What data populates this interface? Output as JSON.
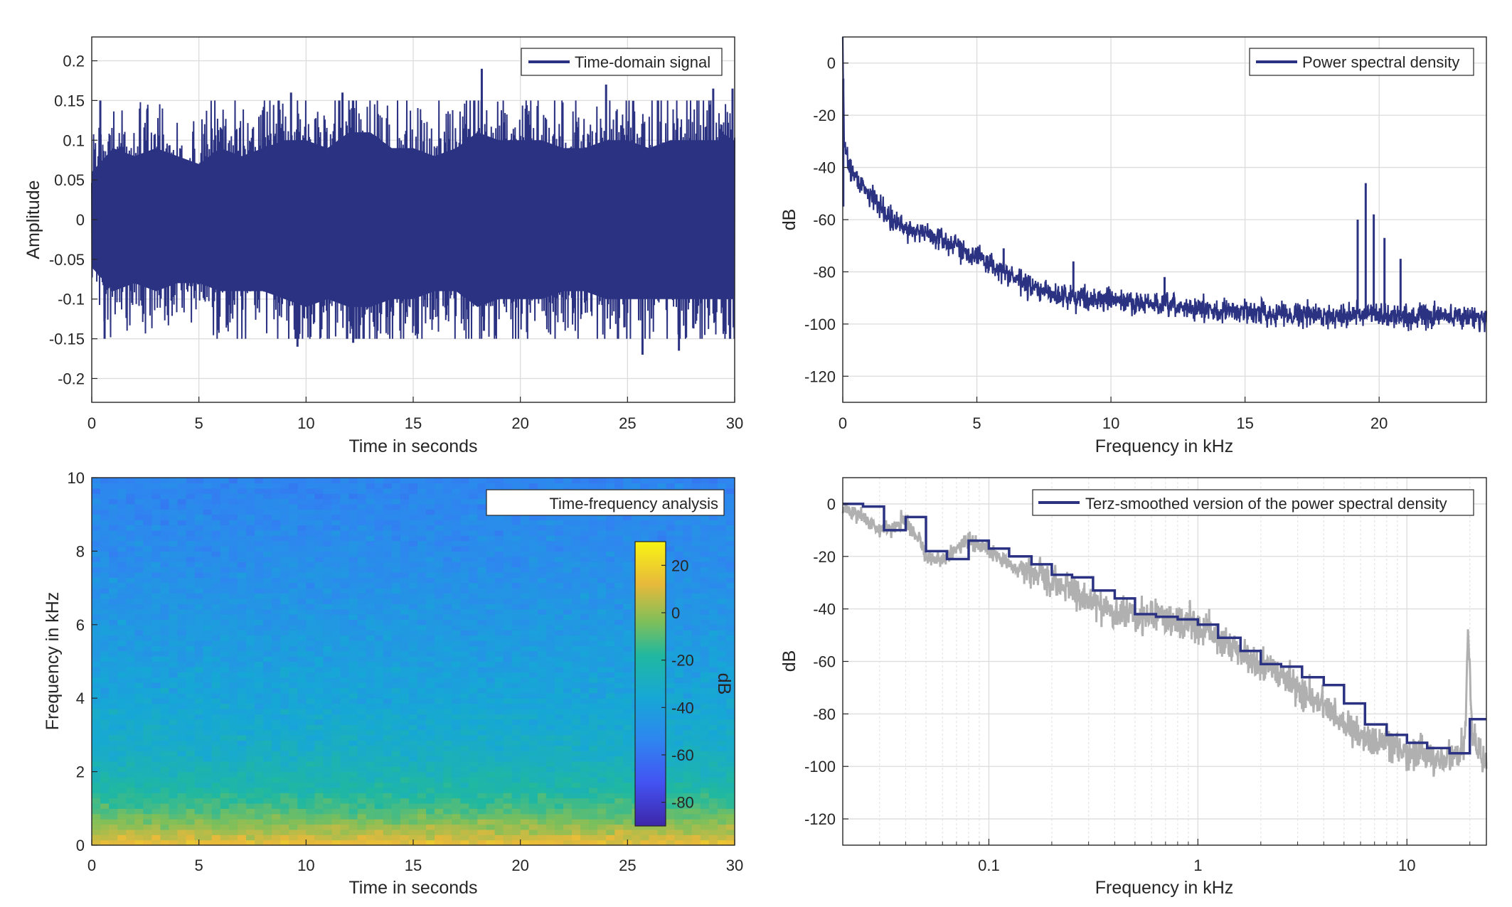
{
  "colors": {
    "signal": "#2b3282",
    "raw_psd": "#b0b0b0",
    "grid": "#dcdcdc",
    "axis": "#262626"
  },
  "chart_data": [
    {
      "type": "line",
      "legend": "Time-domain signal",
      "legend_position": "top-right",
      "xlabel": "Time in seconds",
      "ylabel": "Amplitude",
      "xlim": [
        0,
        30
      ],
      "ylim": [
        -0.23,
        0.23
      ],
      "xticks": [
        0,
        5,
        10,
        15,
        20,
        25,
        30
      ],
      "xtick_labels": [
        "0",
        "5",
        "10",
        "15",
        "20",
        "25",
        "30"
      ],
      "yticks": [
        -0.2,
        -0.15,
        -0.1,
        -0.05,
        0,
        0.05,
        0.1,
        0.15,
        0.2
      ],
      "ytick_labels": [
        "-0.2",
        "-0.15",
        "-0.1",
        "-0.05",
        "0",
        "0.05",
        "0.1",
        "0.15",
        "0.2"
      ],
      "grid": true,
      "envelope": {
        "t": [
          0,
          1,
          2,
          3,
          4,
          5,
          6,
          7,
          8,
          9,
          10,
          11,
          12,
          13,
          14,
          15,
          16,
          17,
          18,
          19,
          20,
          21,
          22,
          23,
          24,
          25,
          26,
          27,
          28,
          29,
          30
        ],
        "upper": [
          0.06,
          0.09,
          0.08,
          0.09,
          0.08,
          0.07,
          0.09,
          0.08,
          0.09,
          0.1,
          0.1,
          0.09,
          0.11,
          0.11,
          0.09,
          0.09,
          0.08,
          0.09,
          0.11,
          0.1,
          0.1,
          0.1,
          0.09,
          0.09,
          0.1,
          0.1,
          0.09,
          0.1,
          0.1,
          0.1,
          0.1
        ],
        "lower": [
          -0.06,
          -0.09,
          -0.08,
          -0.09,
          -0.08,
          -0.08,
          -0.09,
          -0.09,
          -0.09,
          -0.1,
          -0.11,
          -0.1,
          -0.11,
          -0.11,
          -0.1,
          -0.1,
          -0.09,
          -0.09,
          -0.11,
          -0.1,
          -0.1,
          -0.1,
          -0.09,
          -0.09,
          -0.1,
          -0.1,
          -0.1,
          -0.1,
          -0.1,
          -0.1,
          -0.1
        ]
      },
      "peaks": [
        {
          "t": 0.4,
          "v": 0.15
        },
        {
          "t": 0.6,
          "v": -0.15
        },
        {
          "t": 2.6,
          "v": 0.14
        },
        {
          "t": 9.3,
          "v": 0.16
        },
        {
          "t": 9.6,
          "v": -0.16
        },
        {
          "t": 11.7,
          "v": 0.16
        },
        {
          "t": 12.2,
          "v": -0.155
        },
        {
          "t": 18.2,
          "v": 0.19
        },
        {
          "t": 18.3,
          "v": -0.14
        },
        {
          "t": 24.0,
          "v": 0.17
        },
        {
          "t": 25.7,
          "v": -0.17
        },
        {
          "t": 27.4,
          "v": -0.165
        },
        {
          "t": 29.0,
          "v": 0.165
        },
        {
          "t": 29.9,
          "v": 0.165
        }
      ]
    },
    {
      "type": "line",
      "legend": "Power spectral density",
      "legend_position": "top-right",
      "xlabel": "Frequency in kHz",
      "ylabel": "dB",
      "xlim": [
        0,
        24
      ],
      "ylim": [
        -130,
        10
      ],
      "xticks": [
        0,
        5,
        10,
        15,
        20
      ],
      "xtick_labels": [
        "0",
        "5",
        "10",
        "15",
        "20"
      ],
      "yticks": [
        -120,
        -100,
        -80,
        -60,
        -40,
        -20,
        0
      ],
      "ytick_labels": [
        "-120",
        "-100",
        "-80",
        "-60",
        "-40",
        "-20",
        "0"
      ],
      "grid": true,
      "x": [
        0,
        0.05,
        0.2,
        0.5,
        1,
        1.5,
        2,
        3,
        4,
        5,
        6,
        7,
        8,
        9,
        10,
        11,
        12,
        13,
        14,
        15,
        16,
        17,
        18,
        19,
        20,
        21,
        22,
        23,
        24
      ],
      "y": [
        10,
        -30,
        -38,
        -44,
        -50,
        -56,
        -62,
        -65,
        -69,
        -74,
        -80,
        -86,
        -89,
        -90,
        -91,
        -92,
        -93,
        -94,
        -95,
        -95,
        -96,
        -96,
        -97,
        -96,
        -97,
        -97,
        -97,
        -97,
        -98
      ],
      "spikes": [
        {
          "x": 0.02,
          "y": -55
        },
        {
          "x": 6.0,
          "y": -71
        },
        {
          "x": 8.6,
          "y": -76
        },
        {
          "x": 12.0,
          "y": -82
        },
        {
          "x": 19.2,
          "y": -60
        },
        {
          "x": 19.5,
          "y": -46
        },
        {
          "x": 19.8,
          "y": -58
        },
        {
          "x": 20.2,
          "y": -67
        },
        {
          "x": 20.8,
          "y": -75
        }
      ]
    },
    {
      "type": "heatmap",
      "legend": "Time-frequency analysis",
      "legend_position": "top-right",
      "xlabel": "Time in seconds",
      "ylabel": "Frequency in kHz",
      "xlim": [
        0,
        30
      ],
      "ylim": [
        0,
        10
      ],
      "xticks": [
        0,
        5,
        10,
        15,
        20,
        25,
        30
      ],
      "xtick_labels": [
        "0",
        "5",
        "10",
        "15",
        "20",
        "25",
        "30"
      ],
      "yticks": [
        0,
        2,
        4,
        6,
        8,
        10
      ],
      "ytick_labels": [
        "0",
        "2",
        "4",
        "6",
        "8",
        "10"
      ],
      "colorbar": {
        "label": "dB",
        "range": [
          -90,
          30
        ],
        "ticks": [
          -80,
          -60,
          -40,
          -20,
          0,
          20
        ],
        "tick_labels": [
          "-80",
          "-60",
          "-40",
          "-20",
          "0",
          "20"
        ]
      },
      "freq_profile_khz": [
        0,
        0.3,
        0.8,
        1.5,
        2.5,
        4,
        6,
        8,
        10
      ],
      "freq_profile_db": [
        15,
        5,
        -8,
        -20,
        -30,
        -37,
        -44,
        -50,
        -54
      ]
    },
    {
      "type": "line",
      "legend": "Terz-smoothed version of the power spectral density",
      "legend_position": "top-right",
      "xlabel": "Frequency in kHz",
      "ylabel": "dB",
      "xscale": "log",
      "xlim": [
        0.02,
        24
      ],
      "ylim": [
        -130,
        10
      ],
      "xticks": [
        0.1,
        1,
        10
      ],
      "xtick_labels": [
        "0.1",
        "1",
        "10"
      ],
      "yticks": [
        -120,
        -100,
        -80,
        -60,
        -40,
        -20,
        0
      ],
      "ytick_labels": [
        "-120",
        "-100",
        "-80",
        "-60",
        "-40",
        "-20",
        "0"
      ],
      "grid": true,
      "series": [
        {
          "style": "raw",
          "x": [
            0.02,
            0.025,
            0.03,
            0.035,
            0.04,
            0.045,
            0.05,
            0.06,
            0.07,
            0.08,
            0.1,
            0.13,
            0.17,
            0.2,
            0.25,
            0.3,
            0.4,
            0.5,
            0.7,
            0.9,
            1.1,
            1.3,
            1.7,
            2,
            2.5,
            3,
            4,
            5,
            6,
            7,
            9,
            11,
            14,
            17,
            19,
            19.6,
            20.5,
            24
          ],
          "y": [
            -2,
            -5,
            -10,
            -9,
            -5,
            -12,
            -20,
            -21,
            -17,
            -14,
            -18,
            -24,
            -27,
            -30,
            -33,
            -36,
            -41,
            -42,
            -44,
            -45,
            -48,
            -52,
            -58,
            -62,
            -65,
            -70,
            -77,
            -84,
            -88,
            -90,
            -93,
            -96,
            -97,
            -96,
            -90,
            -46,
            -88,
            -99
          ]
        },
        {
          "style": "smoothed",
          "x": [
            0.02,
            0.025,
            0.0315,
            0.04,
            0.05,
            0.063,
            0.08,
            0.1,
            0.125,
            0.16,
            0.2,
            0.25,
            0.315,
            0.4,
            0.5,
            0.63,
            0.8,
            1,
            1.25,
            1.6,
            2,
            2.5,
            3.15,
            4,
            5,
            6.3,
            8,
            10,
            12.5,
            16,
            20,
            24
          ],
          "y": [
            0,
            -1,
            -10,
            -5,
            -18,
            -21,
            -14,
            -17,
            -20,
            -23,
            -27,
            -28,
            -33,
            -36,
            -42,
            -43,
            -44,
            -46,
            -51,
            -56,
            -61,
            -62,
            -66,
            -69,
            -76,
            -84,
            -88,
            -91,
            -93,
            -95,
            -82,
            -82
          ]
        }
      ]
    }
  ]
}
